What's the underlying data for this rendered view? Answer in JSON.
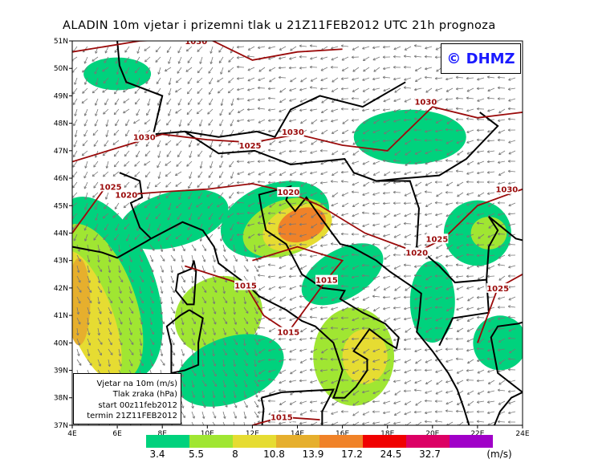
{
  "title": "ALADIN 10m vjetar i prizemni tlak u 21Z11FEB2012 UTC 21h prognoza",
  "logo": "© DHMZ",
  "legend": {
    "lines": [
      "Vjetar na 10m (m/s)",
      "Tlak zraka (hPa)",
      "start 00z11feb2012",
      "termin 21Z11FEB2012"
    ]
  },
  "axes": {
    "lat_ticks": [
      "51N",
      "50N",
      "49N",
      "48N",
      "47N",
      "46N",
      "45N",
      "44N",
      "43N",
      "42N",
      "41N",
      "40N",
      "39N",
      "38N",
      "37N"
    ],
    "lon_ticks": [
      "4E",
      "6E",
      "8E",
      "10E",
      "12E",
      "14E",
      "16E",
      "18E",
      "20E",
      "22E",
      "24E"
    ]
  },
  "colorbar": {
    "colors": [
      "#00d27d",
      "#a0e632",
      "#e6dc32",
      "#e6af2d",
      "#f08228",
      "#f00000",
      "#dc0064",
      "#a000c8"
    ],
    "labels": [
      "3.4",
      "5.5",
      "8",
      "10.8",
      "13.9",
      "17.2",
      "24.5",
      "32.7"
    ],
    "unit": "(m/s)"
  },
  "isobars": [
    {
      "label": "1030",
      "lon": 9.5,
      "lat": 51
    },
    {
      "label": "1030",
      "lon": 7.2,
      "lat": 47.5
    },
    {
      "label": "1030",
      "lon": 13.8,
      "lat": 47.7
    },
    {
      "label": "1030",
      "lon": 19.7,
      "lat": 48.8
    },
    {
      "label": "1030",
      "lon": 23.3,
      "lat": 45.6
    },
    {
      "label": "1025",
      "lon": 11.9,
      "lat": 47.2
    },
    {
      "label": "1025",
      "lon": 5.7,
      "lat": 45.7
    },
    {
      "label": "1020",
      "lon": 6.4,
      "lat": 45.4
    },
    {
      "label": "1020",
      "lon": 13.6,
      "lat": 45.5
    },
    {
      "label": "1025",
      "lon": 20.2,
      "lat": 43.8
    },
    {
      "label": "1020",
      "lon": 19.3,
      "lat": 43.3
    },
    {
      "label": "1015",
      "lon": 11.7,
      "lat": 42.1
    },
    {
      "label": "1015",
      "lon": 15.3,
      "lat": 42.3
    },
    {
      "label": "1015",
      "lon": 13.6,
      "lat": 40.4
    },
    {
      "label": "1015",
      "lon": 13.3,
      "lat": 37.3
    },
    {
      "label": "1025",
      "lon": 22.9,
      "lat": 42.0
    }
  ]
}
